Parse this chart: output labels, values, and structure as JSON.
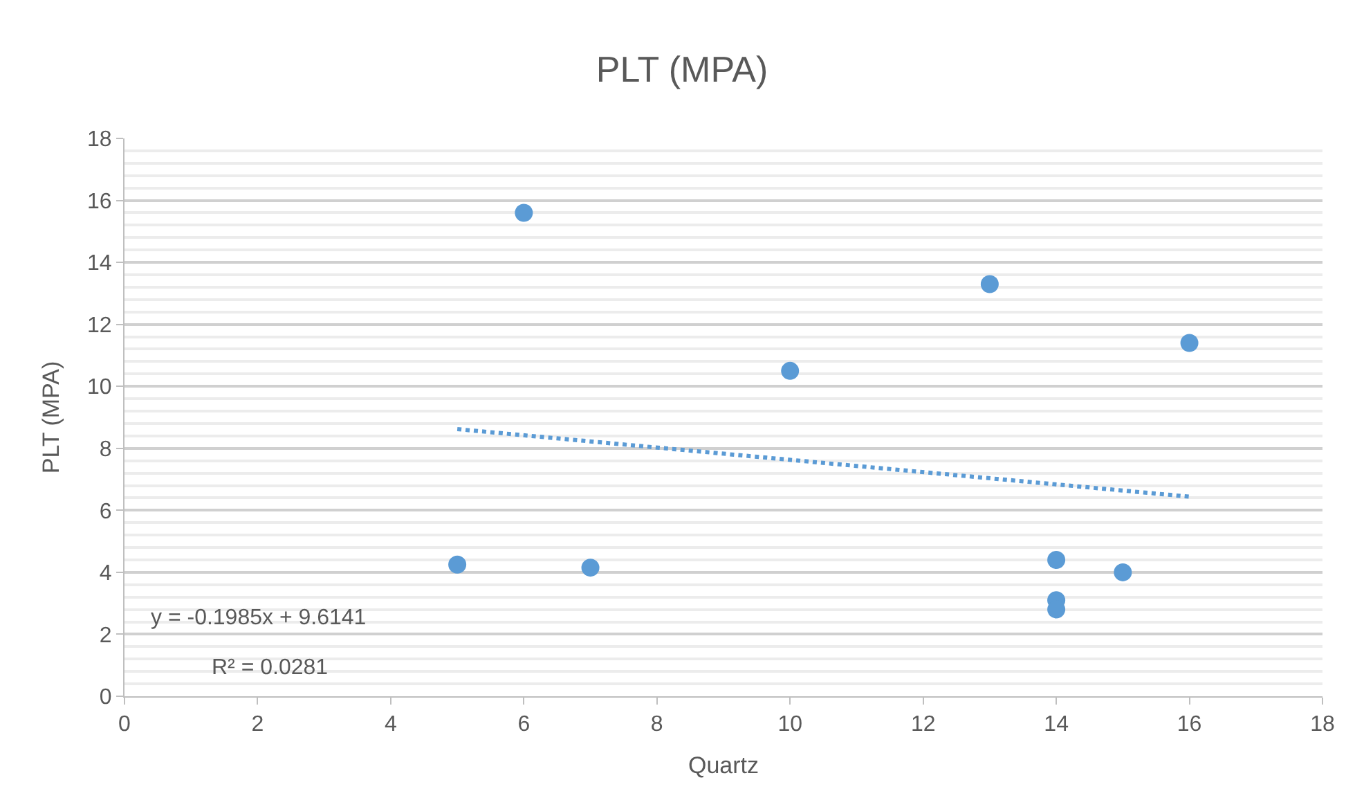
{
  "chart_data": {
    "type": "scatter",
    "title": "PLT (MPA)",
    "xlabel": "Quartz",
    "ylabel": "PLT (MPA)",
    "xlim": [
      0,
      18
    ],
    "xticks": [
      0,
      2,
      4,
      6,
      8,
      10,
      12,
      14,
      16,
      18
    ],
    "ylim": [
      0,
      18
    ],
    "yticks": [
      0,
      2,
      4,
      6,
      8,
      10,
      12,
      14,
      16,
      18
    ],
    "grid": "y",
    "series": [
      {
        "color": "#5b9bd5",
        "marker": "circle",
        "x": [
          5,
          6,
          7,
          10,
          13,
          14,
          14,
          14,
          15,
          16
        ],
        "values": [
          4.25,
          15.6,
          4.15,
          10.5,
          13.3,
          4.4,
          3.1,
          2.8,
          4.0,
          11.4
        ]
      },
      {
        "type": "line",
        "marker": "none",
        "color": "#5b9bd5",
        "line_style": "dotted",
        "x": [
          5,
          16
        ],
        "values": [
          8.62,
          6.44
        ]
      }
    ],
    "annotations": [
      "y = -0.1985x + 9.6141",
      "R² = 0.0281"
    ]
  }
}
